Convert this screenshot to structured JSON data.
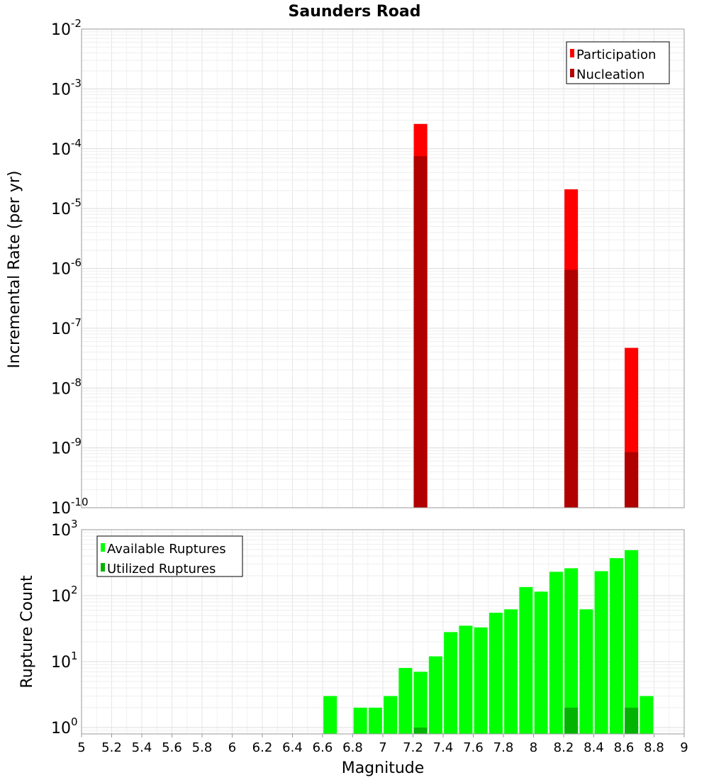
{
  "chart_data": [
    {
      "type": "bar",
      "title": "Saunders Road",
      "xlabel": "",
      "ylabel": "Incremental Rate (per yr)",
      "yscale": "log",
      "ylim": [
        1e-10,
        0.01
      ],
      "xlim": [
        5,
        9
      ],
      "ytick_exponents": [
        "-10",
        "-9",
        "-8",
        "-7",
        "-6",
        "-5",
        "-4",
        "-3",
        "-2"
      ],
      "ytick_base": "10",
      "grid": true,
      "legend_position": "top-right",
      "series": [
        {
          "name": "Participation",
          "color": "#ff0000",
          "x": [
            7.25,
            8.25,
            8.65
          ],
          "values": [
            0.00026,
            2.1e-05,
            4.7e-08
          ]
        },
        {
          "name": "Nucleation",
          "color": "#b00000",
          "x": [
            7.25,
            8.25,
            8.65
          ],
          "values": [
            7.5e-05,
            9.5e-07,
            8.5e-10
          ]
        }
      ]
    },
    {
      "type": "bar",
      "title": "",
      "xlabel": "Magnitude",
      "ylabel": "Rupture Count",
      "yscale": "log",
      "ylim": [
        0.8,
        1000
      ],
      "xlim": [
        5,
        9
      ],
      "ytick_exponents": [
        "0",
        "1",
        "2",
        "3"
      ],
      "ytick_base": "10",
      "xticks": [
        "5",
        "5.2",
        "5.4",
        "5.6",
        "5.8",
        "6",
        "6.2",
        "6.4",
        "6.6",
        "6.8",
        "7",
        "7.2",
        "7.4",
        "7.6",
        "7.8",
        "8",
        "8.2",
        "8.4",
        "8.6",
        "8.8",
        "9"
      ],
      "grid": true,
      "legend_position": "top-left",
      "series": [
        {
          "name": "Available Ruptures",
          "color": "#00ff00",
          "x": [
            6.65,
            6.85,
            6.95,
            7.05,
            7.15,
            7.25,
            7.35,
            7.45,
            7.55,
            7.65,
            7.75,
            7.85,
            7.95,
            8.05,
            8.15,
            8.25,
            8.35,
            8.45,
            8.55,
            8.65,
            8.75
          ],
          "values": [
            3,
            2,
            2,
            3,
            8,
            7,
            12,
            28,
            35,
            33,
            55,
            62,
            135,
            115,
            230,
            260,
            62,
            235,
            370,
            490,
            3
          ]
        },
        {
          "name": "Utilized Ruptures",
          "color": "#00b400",
          "x": [
            7.25,
            8.25,
            8.65
          ],
          "values": [
            1,
            2,
            2
          ]
        }
      ]
    }
  ]
}
